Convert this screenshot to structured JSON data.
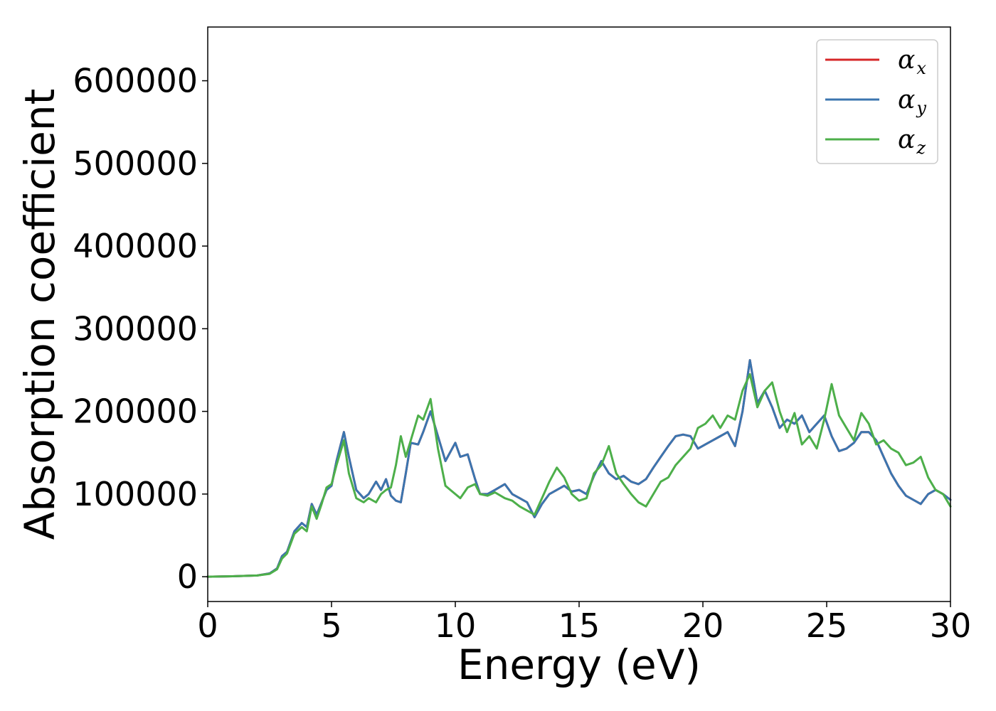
{
  "chart_data": {
    "type": "line",
    "xlabel": "Energy (eV)",
    "ylabel": "Absorption coefficient",
    "xlim": [
      0,
      30
    ],
    "ylim": [
      -30000,
      665000
    ],
    "xticks": [
      0,
      5,
      10,
      15,
      20,
      25,
      30
    ],
    "yticks": [
      0,
      100000,
      200000,
      300000,
      400000,
      500000,
      600000
    ],
    "grid": false,
    "legend_position": "top-right",
    "series": [
      {
        "name": "α",
        "subscript": "x",
        "color": "#d62728",
        "x": [
          0,
          1,
          2,
          2.5,
          2.8,
          3.0,
          3.2,
          3.5,
          3.8,
          4.0,
          4.2,
          4.4,
          4.6,
          4.8,
          5.0,
          5.2,
          5.5,
          5.7,
          6.0,
          6.3,
          6.5,
          6.8,
          7.0,
          7.2,
          7.4,
          7.6,
          7.8,
          8.0,
          8.2,
          8.5,
          8.7,
          9.0,
          9.3,
          9.6,
          10.0,
          10.2,
          10.5,
          10.8,
          11.0,
          11.3,
          11.6,
          12.0,
          12.3,
          12.6,
          12.9,
          13.2,
          13.5,
          13.8,
          14.1,
          14.4,
          14.7,
          15.0,
          15.3,
          15.6,
          15.9,
          16.2,
          16.5,
          16.8,
          17.1,
          17.4,
          17.7,
          18.0,
          18.3,
          18.6,
          18.9,
          19.2,
          19.5,
          19.8,
          20.1,
          20.4,
          20.7,
          21.0,
          21.3,
          21.6,
          21.9,
          22.2,
          22.5,
          22.8,
          23.1,
          23.4,
          23.7,
          24.0,
          24.3,
          24.6,
          24.9,
          25.2,
          25.5,
          25.8,
          26.1,
          26.4,
          26.7,
          27.0,
          27.3,
          27.6,
          27.9,
          28.2,
          28.5,
          28.8,
          29.1,
          29.4,
          29.7,
          30
        ],
        "values": [
          0,
          500,
          1500,
          4000,
          10000,
          25000,
          30000,
          55000,
          65000,
          60000,
          88000,
          75000,
          90000,
          105000,
          110000,
          140000,
          175000,
          145000,
          105000,
          95000,
          100000,
          115000,
          105000,
          118000,
          98000,
          92000,
          90000,
          125000,
          162000,
          160000,
          175000,
          200000,
          170000,
          140000,
          162000,
          145000,
          148000,
          118000,
          100000,
          100000,
          105000,
          112000,
          100000,
          95000,
          90000,
          72000,
          88000,
          100000,
          105000,
          110000,
          103000,
          105000,
          100000,
          122000,
          140000,
          125000,
          118000,
          122000,
          115000,
          112000,
          118000,
          132000,
          145000,
          158000,
          170000,
          172000,
          170000,
          155000,
          160000,
          165000,
          170000,
          175000,
          158000,
          200000,
          262000,
          210000,
          225000,
          205000,
          180000,
          190000,
          185000,
          195000,
          175000,
          185000,
          195000,
          170000,
          152000,
          155000,
          162000,
          175000,
          175000,
          165000,
          145000,
          125000,
          110000,
          98000,
          93000,
          88000,
          100000,
          105000,
          100000,
          93000
        ]
      },
      {
        "name": "α",
        "subscript": "y",
        "color": "#3b75af",
        "x": [
          0,
          1,
          2,
          2.5,
          2.8,
          3.0,
          3.2,
          3.5,
          3.8,
          4.0,
          4.2,
          4.4,
          4.6,
          4.8,
          5.0,
          5.2,
          5.5,
          5.7,
          6.0,
          6.3,
          6.5,
          6.8,
          7.0,
          7.2,
          7.4,
          7.6,
          7.8,
          8.0,
          8.2,
          8.5,
          8.7,
          9.0,
          9.3,
          9.6,
          10.0,
          10.2,
          10.5,
          10.8,
          11.0,
          11.3,
          11.6,
          12.0,
          12.3,
          12.6,
          12.9,
          13.2,
          13.5,
          13.8,
          14.1,
          14.4,
          14.7,
          15.0,
          15.3,
          15.6,
          15.9,
          16.2,
          16.5,
          16.8,
          17.1,
          17.4,
          17.7,
          18.0,
          18.3,
          18.6,
          18.9,
          19.2,
          19.5,
          19.8,
          20.1,
          20.4,
          20.7,
          21.0,
          21.3,
          21.6,
          21.9,
          22.2,
          22.5,
          22.8,
          23.1,
          23.4,
          23.7,
          24.0,
          24.3,
          24.6,
          24.9,
          25.2,
          25.5,
          25.8,
          26.1,
          26.4,
          26.7,
          27.0,
          27.3,
          27.6,
          27.9,
          28.2,
          28.5,
          28.8,
          29.1,
          29.4,
          29.7,
          30
        ],
        "values": [
          0,
          500,
          1500,
          4000,
          10000,
          25000,
          30000,
          55000,
          65000,
          60000,
          88000,
          75000,
          90000,
          105000,
          110000,
          140000,
          175000,
          145000,
          105000,
          95000,
          100000,
          115000,
          105000,
          118000,
          98000,
          92000,
          90000,
          125000,
          162000,
          160000,
          175000,
          200000,
          170000,
          140000,
          162000,
          145000,
          148000,
          118000,
          100000,
          100000,
          105000,
          112000,
          100000,
          95000,
          90000,
          72000,
          88000,
          100000,
          105000,
          110000,
          103000,
          105000,
          100000,
          122000,
          140000,
          125000,
          118000,
          122000,
          115000,
          112000,
          118000,
          132000,
          145000,
          158000,
          170000,
          172000,
          170000,
          155000,
          160000,
          165000,
          170000,
          175000,
          158000,
          200000,
          262000,
          210000,
          225000,
          205000,
          180000,
          190000,
          185000,
          195000,
          175000,
          185000,
          195000,
          170000,
          152000,
          155000,
          162000,
          175000,
          175000,
          165000,
          145000,
          125000,
          110000,
          98000,
          93000,
          88000,
          100000,
          105000,
          100000,
          93000
        ]
      },
      {
        "name": "α",
        "subscript": "z",
        "color": "#4daf4a",
        "x": [
          0,
          1,
          2,
          2.5,
          2.8,
          3.0,
          3.2,
          3.5,
          3.8,
          4.0,
          4.2,
          4.4,
          4.6,
          4.8,
          5.0,
          5.2,
          5.5,
          5.7,
          6.0,
          6.3,
          6.5,
          6.8,
          7.0,
          7.2,
          7.4,
          7.6,
          7.8,
          8.0,
          8.2,
          8.5,
          8.7,
          9.0,
          9.3,
          9.6,
          10.0,
          10.2,
          10.5,
          10.8,
          11.0,
          11.3,
          11.6,
          12.0,
          12.3,
          12.6,
          12.9,
          13.2,
          13.5,
          13.8,
          14.1,
          14.4,
          14.7,
          15.0,
          15.3,
          15.6,
          15.9,
          16.2,
          16.5,
          16.8,
          17.1,
          17.4,
          17.7,
          18.0,
          18.3,
          18.6,
          18.9,
          19.2,
          19.5,
          19.8,
          20.1,
          20.4,
          20.7,
          21.0,
          21.3,
          21.6,
          21.9,
          22.2,
          22.5,
          22.8,
          23.1,
          23.4,
          23.7,
          24.0,
          24.3,
          24.6,
          24.9,
          25.2,
          25.5,
          25.8,
          26.1,
          26.4,
          26.7,
          27.0,
          27.3,
          27.6,
          27.9,
          28.2,
          28.5,
          28.8,
          29.1,
          29.4,
          29.7,
          30
        ],
        "values": [
          0,
          500,
          1500,
          3500,
          9000,
          22000,
          28000,
          52000,
          60000,
          55000,
          85000,
          70000,
          88000,
          108000,
          112000,
          135000,
          165000,
          125000,
          95000,
          90000,
          95000,
          90000,
          100000,
          105000,
          108000,
          135000,
          170000,
          145000,
          165000,
          195000,
          190000,
          215000,
          155000,
          110000,
          100000,
          95000,
          108000,
          112000,
          100000,
          98000,
          102000,
          95000,
          92000,
          85000,
          80000,
          75000,
          95000,
          115000,
          132000,
          120000,
          100000,
          92000,
          95000,
          125000,
          135000,
          158000,
          125000,
          112000,
          100000,
          90000,
          85000,
          100000,
          115000,
          120000,
          135000,
          145000,
          155000,
          180000,
          185000,
          195000,
          180000,
          195000,
          190000,
          225000,
          245000,
          205000,
          225000,
          235000,
          200000,
          175000,
          198000,
          160000,
          170000,
          155000,
          190000,
          233000,
          195000,
          180000,
          165000,
          198000,
          185000,
          160000,
          165000,
          155000,
          150000,
          135000,
          138000,
          145000,
          120000,
          105000,
          100000,
          85000
        ]
      }
    ]
  }
}
